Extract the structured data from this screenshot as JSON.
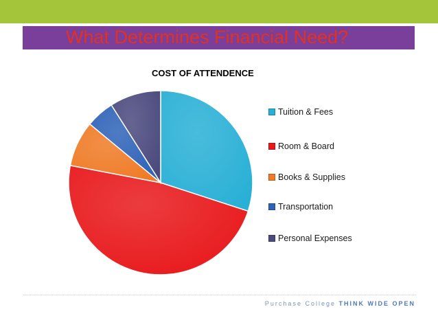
{
  "slide": {
    "title": "What Determines Financial Need?",
    "footer_college": "Purchase College",
    "footer_tagline": "THINK WIDE OPEN"
  },
  "colors": {
    "top_bar": "#a4c43a",
    "title_bar": "#7a3f9b",
    "title_text": "#e2311f"
  },
  "chart_data": {
    "type": "pie",
    "title": "COST OF ATTENDENCE",
    "legend_position": "right",
    "labels": [
      "Tuition & Fees",
      "Room & Board",
      "Books & Supplies",
      "Transportation",
      "Personal Expenses"
    ],
    "values": [
      30,
      48,
      8,
      5,
      9
    ],
    "colors": [
      "#2ab0d6",
      "#e8191c",
      "#ef7b26",
      "#2f63b8",
      "#4b4a7e"
    ]
  }
}
